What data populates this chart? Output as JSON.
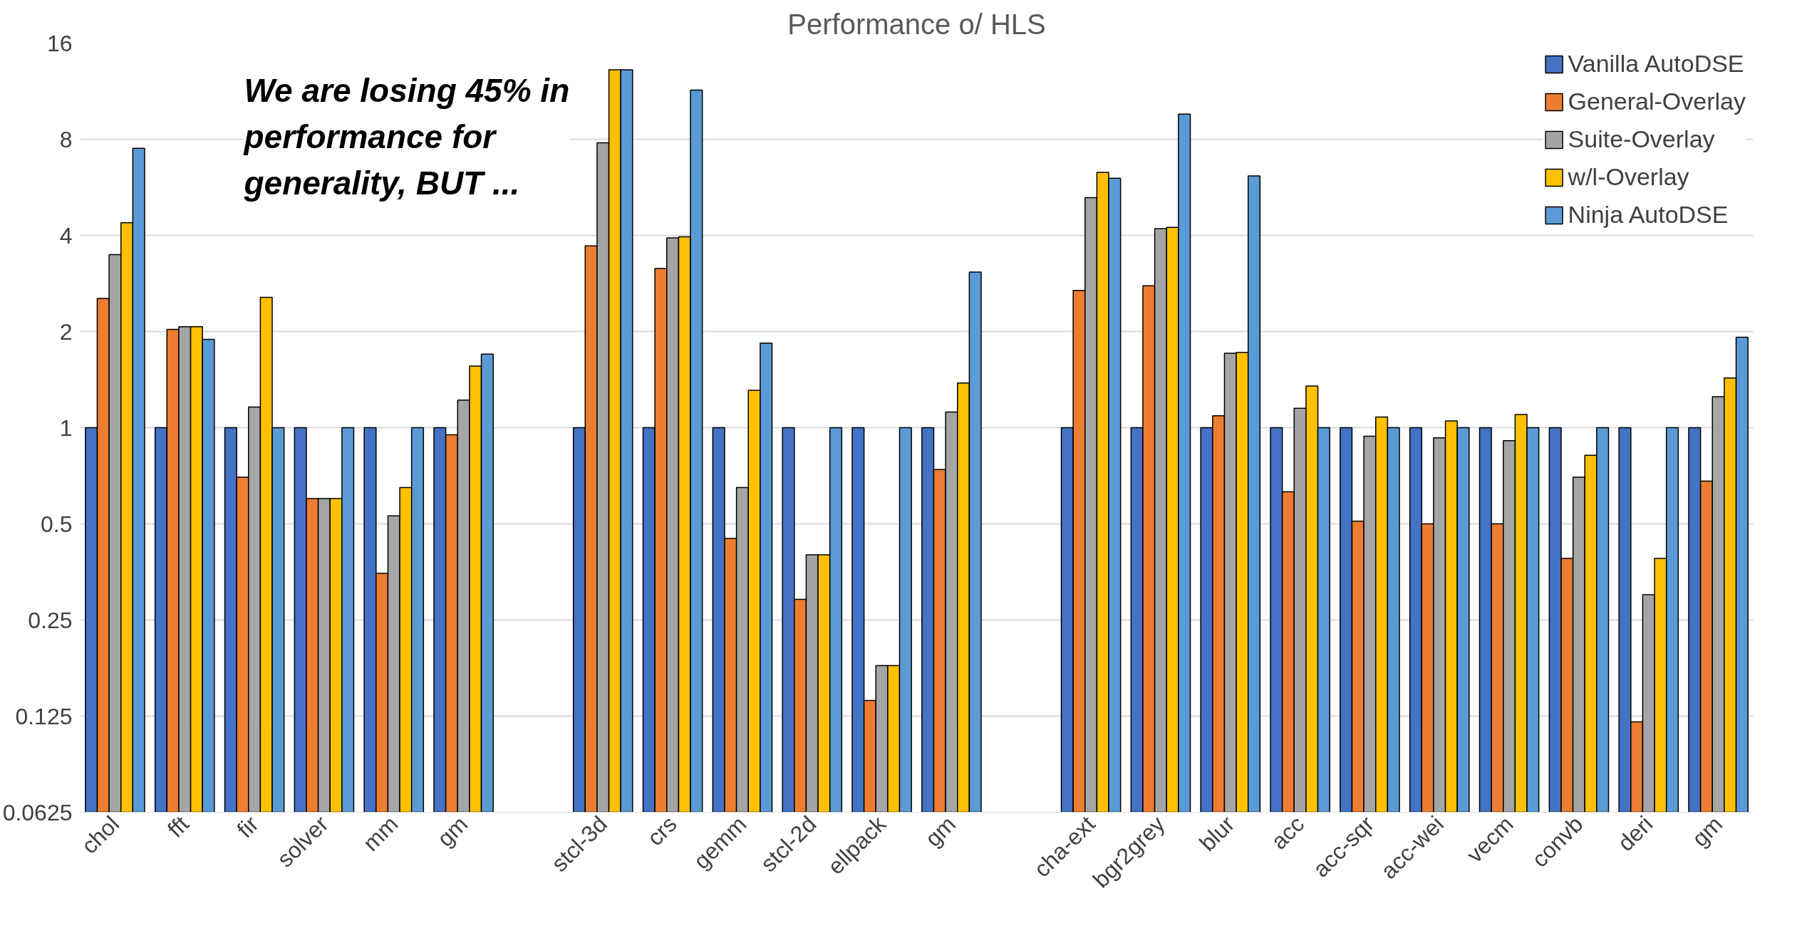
{
  "chart_data": {
    "type": "bar",
    "title": "Performance o/ HLS",
    "categories": [
      "chol",
      "fft",
      "fir",
      "solver",
      "mm",
      "gm",
      null,
      "stcl-3d",
      "crs",
      "gemm",
      "stcl-2d",
      "ellpack",
      "gm",
      null,
      "cha-ext",
      "bgr2grey",
      "blur",
      "acc",
      "acc-sqr",
      "acc-wei",
      "vecm",
      "convb",
      "deri",
      "gm"
    ],
    "series": [
      {
        "name": "Vanilla AutoDSE",
        "color": "#4472c4",
        "values": [
          1,
          1,
          1,
          1,
          1,
          1,
          null,
          1,
          1,
          1,
          1,
          1,
          1,
          null,
          1,
          1,
          1,
          1,
          1,
          1,
          1,
          1,
          1,
          1
        ]
      },
      {
        "name": "General-Overlay",
        "color": "#ed7d31",
        "values": [
          2.54,
          2.03,
          0.7,
          0.6,
          0.35,
          0.95,
          null,
          3.71,
          3.15,
          0.45,
          0.29,
          0.14,
          0.74,
          null,
          2.69,
          2.78,
          1.09,
          0.63,
          0.51,
          0.5,
          0.5,
          0.39,
          0.12,
          0.68
        ]
      },
      {
        "name": "Suite-Overlay",
        "color": "#a5a5a5",
        "values": [
          3.48,
          2.07,
          1.16,
          0.6,
          0.53,
          1.22,
          null,
          7.8,
          3.93,
          0.65,
          0.4,
          0.18,
          1.12,
          null,
          5.25,
          4.2,
          1.71,
          1.15,
          0.94,
          0.93,
          0.91,
          0.7,
          0.3,
          1.25
        ]
      },
      {
        "name": "w/l-Overlay",
        "color": "#ffc000",
        "values": [
          4.38,
          2.07,
          2.56,
          0.6,
          0.65,
          1.56,
          null,
          13.2,
          3.96,
          1.31,
          0.4,
          0.18,
          1.38,
          null,
          6.3,
          4.24,
          1.72,
          1.35,
          1.08,
          1.05,
          1.1,
          0.82,
          0.39,
          1.43
        ]
      },
      {
        "name": "Ninja AutoDSE",
        "color": "#5b9bd5",
        "values": [
          7.49,
          1.89,
          1,
          1,
          1,
          1.7,
          null,
          13.2,
          11.4,
          1.84,
          1,
          1,
          3.07,
          null,
          6.04,
          9.59,
          6.14,
          1,
          1,
          1,
          1,
          1,
          1,
          1.92
        ]
      }
    ],
    "log": true,
    "ylim": [
      0.0625,
      16
    ],
    "yticks": [
      0.0625,
      0.125,
      0.25,
      0.5,
      1,
      2,
      4,
      8,
      16
    ],
    "grid": "y",
    "legend": "top right",
    "annotations": [
      "We are losing 45% in\nperformance for\ngenerality, BUT ..."
    ]
  }
}
